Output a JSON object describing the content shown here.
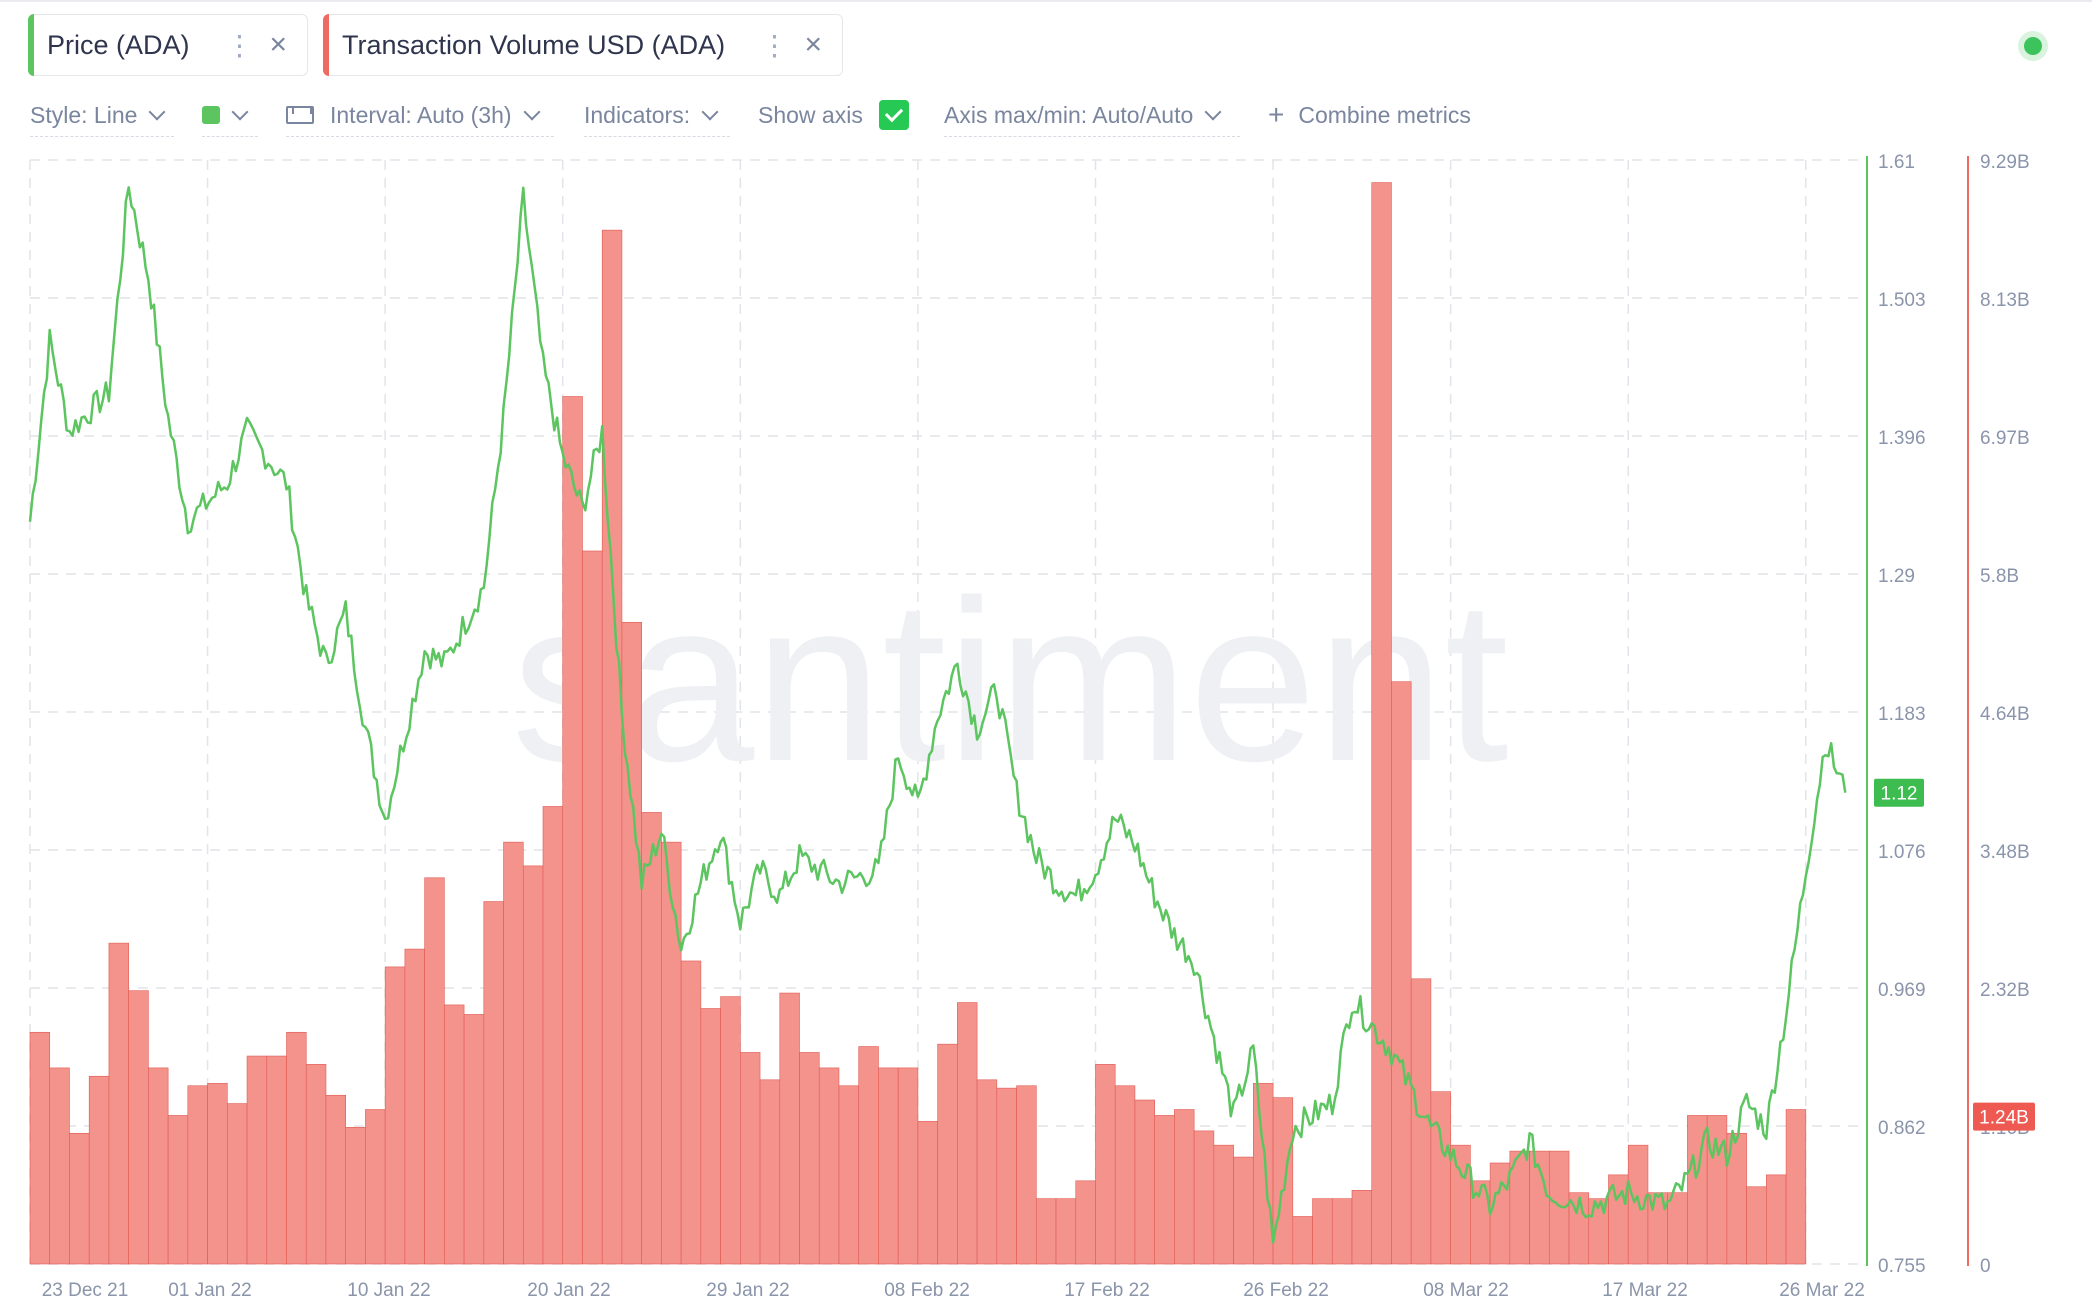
{
  "metrics": [
    {
      "label": "Price (ADA)",
      "color": "#5cc560"
    },
    {
      "label": "Transaction Volume USD (ADA)",
      "color": "#ef6b62"
    }
  ],
  "toolbar": {
    "style": "Style: Line",
    "interval": "Interval: Auto (3h)",
    "indicators": "Indicators:",
    "show_axis": "Show axis",
    "axis_maxmin": "Axis max/min: Auto/Auto",
    "combine": "Combine metrics"
  },
  "watermark": "santiment",
  "colors": {
    "price": "#5cc560",
    "volume_fill": "#f3938c",
    "volume_stroke": "#e05a52",
    "grid": "#e1e4e9",
    "axis_text": "#8a94aa"
  },
  "chart_data": {
    "type": "bar+line",
    "x_start": "2021-12-23",
    "x_end": "2022-03-26",
    "x_ticks": [
      "23 Dec 21",
      "01 Jan 22",
      "10 Jan 22",
      "20 Jan 22",
      "29 Jan 22",
      "08 Feb 22",
      "17 Feb 22",
      "26 Feb 22",
      "08 Mar 22",
      "17 Mar 22",
      "26 Mar 22"
    ],
    "price_axis": {
      "ticks": [
        "1.61",
        "1.503",
        "1.396",
        "1.29",
        "1.183",
        "1.076",
        "0.969",
        "0.862",
        "0.755"
      ],
      "min": 0.755,
      "max": 1.61,
      "current_label": "1.12"
    },
    "volume_axis": {
      "ticks": [
        "9.29B",
        "8.13B",
        "6.97B",
        "5.8B",
        "4.64B",
        "3.48B",
        "2.32B",
        "1.16B",
        "0"
      ],
      "min": 0,
      "max": 9.29,
      "current_label": "1.24B"
    },
    "price_keypoints": [
      {
        "date": "2021-12-23",
        "v": 1.33
      },
      {
        "date": "2021-12-24",
        "v": 1.47
      },
      {
        "date": "2021-12-25",
        "v": 1.4
      },
      {
        "date": "2021-12-27",
        "v": 1.43
      },
      {
        "date": "2021-12-28",
        "v": 1.59
      },
      {
        "date": "2021-12-29",
        "v": 1.52
      },
      {
        "date": "2021-12-30",
        "v": 1.41
      },
      {
        "date": "2021-12-31",
        "v": 1.33
      },
      {
        "date": "2022-01-02",
        "v": 1.36
      },
      {
        "date": "2022-01-03",
        "v": 1.4
      },
      {
        "date": "2022-01-05",
        "v": 1.36
      },
      {
        "date": "2022-01-06",
        "v": 1.27
      },
      {
        "date": "2022-01-07",
        "v": 1.22
      },
      {
        "date": "2022-01-08",
        "v": 1.26
      },
      {
        "date": "2022-01-09",
        "v": 1.17
      },
      {
        "date": "2022-01-10",
        "v": 1.1
      },
      {
        "date": "2022-01-12",
        "v": 1.23
      },
      {
        "date": "2022-01-13",
        "v": 1.22
      },
      {
        "date": "2022-01-15",
        "v": 1.28
      },
      {
        "date": "2022-01-16",
        "v": 1.41
      },
      {
        "date": "2022-01-17",
        "v": 1.58
      },
      {
        "date": "2022-01-18",
        "v": 1.45
      },
      {
        "date": "2022-01-19",
        "v": 1.38
      },
      {
        "date": "2022-01-20",
        "v": 1.34
      },
      {
        "date": "2022-01-21",
        "v": 1.4
      },
      {
        "date": "2022-01-22",
        "v": 1.18
      },
      {
        "date": "2022-01-23",
        "v": 1.05
      },
      {
        "date": "2022-01-24",
        "v": 1.09
      },
      {
        "date": "2022-01-25",
        "v": 1.0
      },
      {
        "date": "2022-01-26",
        "v": 1.05
      },
      {
        "date": "2022-01-27",
        "v": 1.09
      },
      {
        "date": "2022-01-28",
        "v": 1.02
      },
      {
        "date": "2022-01-29",
        "v": 1.06
      },
      {
        "date": "2022-01-30",
        "v": 1.04
      },
      {
        "date": "2022-01-31",
        "v": 1.07
      },
      {
        "date": "2022-02-02",
        "v": 1.05
      },
      {
        "date": "2022-02-04",
        "v": 1.06
      },
      {
        "date": "2022-02-05",
        "v": 1.15
      },
      {
        "date": "2022-02-06",
        "v": 1.11
      },
      {
        "date": "2022-02-07",
        "v": 1.18
      },
      {
        "date": "2022-02-08",
        "v": 1.22
      },
      {
        "date": "2022-02-09",
        "v": 1.17
      },
      {
        "date": "2022-02-10",
        "v": 1.2
      },
      {
        "date": "2022-02-11",
        "v": 1.12
      },
      {
        "date": "2022-02-12",
        "v": 1.07
      },
      {
        "date": "2022-02-13",
        "v": 1.05
      },
      {
        "date": "2022-02-14",
        "v": 1.04
      },
      {
        "date": "2022-02-15",
        "v": 1.06
      },
      {
        "date": "2022-02-16",
        "v": 1.1
      },
      {
        "date": "2022-02-17",
        "v": 1.08
      },
      {
        "date": "2022-02-18",
        "v": 1.04
      },
      {
        "date": "2022-02-19",
        "v": 1.01
      },
      {
        "date": "2022-02-20",
        "v": 0.99
      },
      {
        "date": "2022-02-21",
        "v": 0.93
      },
      {
        "date": "2022-02-22",
        "v": 0.87
      },
      {
        "date": "2022-02-23",
        "v": 0.92
      },
      {
        "date": "2022-02-24",
        "v": 0.77
      },
      {
        "date": "2022-02-25",
        "v": 0.86
      },
      {
        "date": "2022-02-26",
        "v": 0.87
      },
      {
        "date": "2022-02-27",
        "v": 0.88
      },
      {
        "date": "2022-02-28",
        "v": 0.96
      },
      {
        "date": "2022-03-01",
        "v": 0.94
      },
      {
        "date": "2022-03-02",
        "v": 0.92
      },
      {
        "date": "2022-03-03",
        "v": 0.89
      },
      {
        "date": "2022-03-04",
        "v": 0.86
      },
      {
        "date": "2022-03-05",
        "v": 0.84
      },
      {
        "date": "2022-03-06",
        "v": 0.82
      },
      {
        "date": "2022-03-07",
        "v": 0.8
      },
      {
        "date": "2022-03-08",
        "v": 0.82
      },
      {
        "date": "2022-03-09",
        "v": 0.85
      },
      {
        "date": "2022-03-10",
        "v": 0.81
      },
      {
        "date": "2022-03-12",
        "v": 0.8
      },
      {
        "date": "2022-03-14",
        "v": 0.81
      },
      {
        "date": "2022-03-16",
        "v": 0.8
      },
      {
        "date": "2022-03-17",
        "v": 0.82
      },
      {
        "date": "2022-03-18",
        "v": 0.85
      },
      {
        "date": "2022-03-19",
        "v": 0.84
      },
      {
        "date": "2022-03-20",
        "v": 0.88
      },
      {
        "date": "2022-03-21",
        "v": 0.86
      },
      {
        "date": "2022-03-22",
        "v": 0.95
      },
      {
        "date": "2022-03-23",
        "v": 1.06
      },
      {
        "date": "2022-03-24",
        "v": 1.16
      },
      {
        "date": "2022-03-25",
        "v": 1.12
      }
    ],
    "volume_daily_billion": [
      1.95,
      1.65,
      1.1,
      1.58,
      2.7,
      2.3,
      1.65,
      1.25,
      1.5,
      1.52,
      1.35,
      1.75,
      1.75,
      1.95,
      1.68,
      1.42,
      1.15,
      1.3,
      2.5,
      2.65,
      3.25,
      2.18,
      2.1,
      3.05,
      3.55,
      3.35,
      3.85,
      7.3,
      6.0,
      8.7,
      5.4,
      3.8,
      3.55,
      2.55,
      2.15,
      2.25,
      1.78,
      1.55,
      2.28,
      1.78,
      1.65,
      1.5,
      1.83,
      1.65,
      1.65,
      1.2,
      1.85,
      2.2,
      1.55,
      1.48,
      1.5,
      0.55,
      0.55,
      0.7,
      1.68,
      1.5,
      1.38,
      1.25,
      1.3,
      1.12,
      1.0,
      0.9,
      1.52,
      1.4,
      0.4,
      0.55,
      0.55,
      0.62,
      9.1,
      4.9,
      2.4,
      1.45,
      1.0,
      0.7,
      0.85,
      0.95,
      0.95,
      0.95,
      0.6,
      0.55,
      0.75,
      1.0,
      0.6,
      0.6,
      1.25,
      1.25,
      1.1,
      0.65,
      0.75,
      1.3,
      1.33,
      1.24
    ]
  }
}
